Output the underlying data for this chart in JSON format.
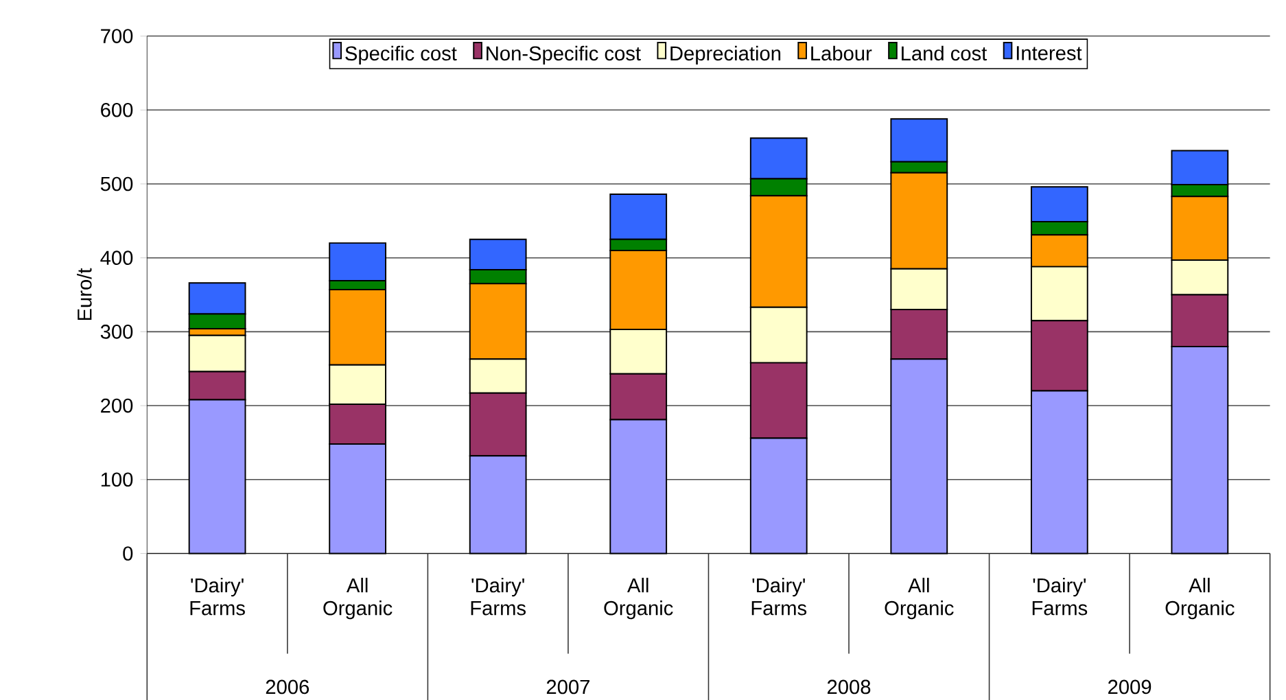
{
  "chart_data": {
    "type": "bar",
    "stacked": true,
    "ylabel": "Euro/t",
    "categories": [
      "'Dairy' Farms",
      "All Organic",
      "'Dairy' Farms",
      "All Organic",
      "'Dairy' Farms",
      "All Organic",
      "'Dairy' Farms",
      "All Organic"
    ],
    "series": [
      {
        "name": "Specific cost",
        "color": "#9999ff",
        "values": [
          208,
          148,
          132,
          181,
          156,
          263,
          220,
          280
        ]
      },
      {
        "name": "Non-Specific cost",
        "color": "#993366",
        "values": [
          38,
          54,
          85,
          62,
          102,
          67,
          95,
          70
        ]
      },
      {
        "name": "Depreciation",
        "color": "#ffffcc",
        "values": [
          49,
          53,
          46,
          60,
          75,
          55,
          73,
          47
        ]
      },
      {
        "name": "Labour",
        "color": "#ff9900",
        "values": [
          9,
          102,
          102,
          107,
          151,
          130,
          43,
          86
        ]
      },
      {
        "name": "Land cost",
        "color": "#008000",
        "values": [
          20,
          12,
          19,
          15,
          23,
          15,
          18,
          16
        ]
      },
      {
        "name": "Interest",
        "color": "#3366ff",
        "values": [
          42,
          51,
          41,
          61,
          55,
          58,
          47,
          46
        ]
      }
    ],
    "ylim": [
      0,
      700
    ],
    "yticks": [
      0,
      100,
      200,
      300,
      400,
      500,
      600,
      700
    ],
    "grid": "y",
    "legend": "top",
    "annotations": [
      "2006",
      "2007",
      "2008",
      "2009"
    ]
  }
}
